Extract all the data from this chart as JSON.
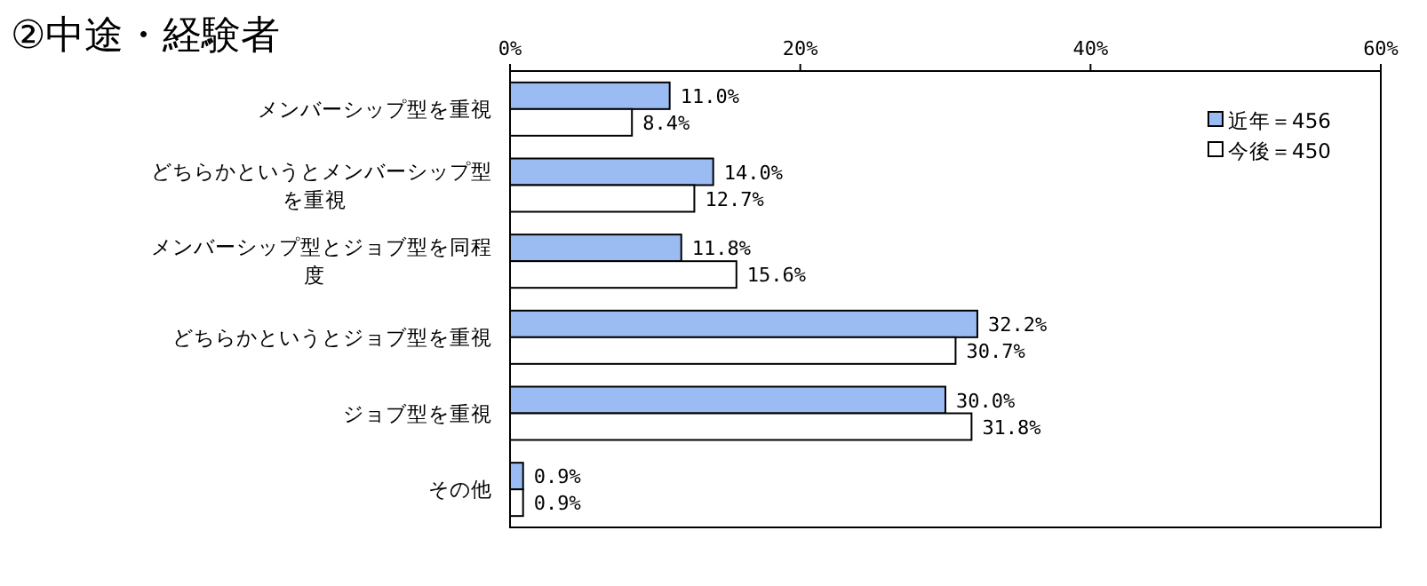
{
  "chart_data": {
    "type": "bar",
    "orientation": "horizontal",
    "title": "②中途・経験者",
    "categories": [
      "メンバーシップ型を重視",
      "どちらかというとメンバーシップ型を重視",
      "メンバーシップ型とジョブ型を同程度",
      "どちらかというとジョブ型を重視",
      "ジョブ型を重視",
      "その他"
    ],
    "series": [
      {
        "name": "近年＝456",
        "color": "#9bbcf2",
        "values": [
          11.0,
          14.0,
          11.8,
          32.2,
          30.0,
          0.9
        ],
        "value_labels": [
          "11.0%",
          "14.0%",
          "11.8%",
          "32.2%",
          "30.0%",
          "0.9%"
        ]
      },
      {
        "name": "今後＝450",
        "color": "#ffffff",
        "values": [
          8.4,
          12.7,
          15.6,
          30.7,
          31.8,
          0.9
        ],
        "value_labels": [
          "8.4%",
          "12.7%",
          "15.6%",
          "30.7%",
          "31.8%",
          "0.9%"
        ]
      }
    ],
    "xlim": [
      0,
      60
    ],
    "xticks": [
      {
        "value": 0,
        "label": "0%"
      },
      {
        "value": 20,
        "label": "20%"
      },
      {
        "value": 40,
        "label": "40%"
      },
      {
        "value": 60,
        "label": "60%"
      }
    ],
    "grid": false,
    "legend": "top right"
  }
}
